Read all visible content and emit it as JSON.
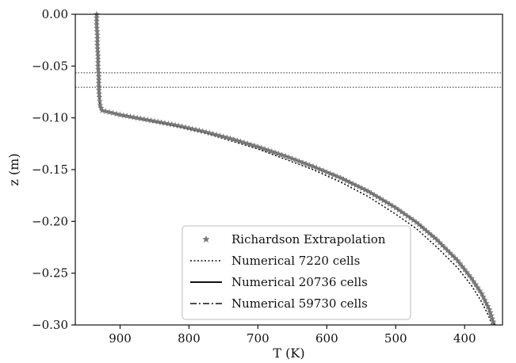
{
  "chart_data": {
    "type": "line",
    "xlabel": "T (K)",
    "ylabel": "z (m)",
    "xlim": [
      965,
      345
    ],
    "ylim": [
      -0.3,
      0.0
    ],
    "x_inverted": true,
    "xticks": [
      900,
      800,
      700,
      600,
      500,
      400
    ],
    "yticks": [
      0.0,
      -0.05,
      -0.1,
      -0.15,
      -0.2,
      -0.25,
      -0.3
    ],
    "xtick_labels": [
      "900",
      "800",
      "700",
      "600",
      "500",
      "400"
    ],
    "ytick_labels": [
      "0.00",
      "−0.05",
      "−0.10",
      "−0.15",
      "−0.20",
      "−0.25",
      "−0.30"
    ],
    "grid": false,
    "legend_position": "lower-center",
    "reference_lines": [
      {
        "z": -0.0565,
        "style": "dotted"
      },
      {
        "z": -0.0705,
        "style": "dotted"
      }
    ],
    "series": [
      {
        "name": "Richardson Extrapolation",
        "style": "star-markers",
        "color": "#777777",
        "points": [
          [
            934,
            0.0
          ],
          [
            934,
            -0.01
          ],
          [
            933,
            -0.02
          ],
          [
            933,
            -0.03
          ],
          [
            932,
            -0.04
          ],
          [
            932,
            -0.05
          ],
          [
            931,
            -0.06
          ],
          [
            931,
            -0.07
          ],
          [
            930,
            -0.08
          ],
          [
            929,
            -0.088
          ],
          [
            926,
            -0.093
          ],
          [
            900,
            -0.097
          ],
          [
            860,
            -0.102
          ],
          [
            820,
            -0.107
          ],
          [
            780,
            -0.113
          ],
          [
            740,
            -0.12
          ],
          [
            700,
            -0.128
          ],
          [
            660,
            -0.137
          ],
          [
            620,
            -0.147
          ],
          [
            580,
            -0.158
          ],
          [
            540,
            -0.171
          ],
          [
            500,
            -0.187
          ],
          [
            470,
            -0.201
          ],
          [
            440,
            -0.218
          ],
          [
            410,
            -0.238
          ],
          [
            390,
            -0.255
          ],
          [
            375,
            -0.27
          ],
          [
            364,
            -0.285
          ],
          [
            357,
            -0.3
          ]
        ]
      },
      {
        "name": "Numerical 7220 cells",
        "style": "dotted",
        "color": "#111111",
        "points": [
          [
            934,
            0.0
          ],
          [
            933,
            -0.02
          ],
          [
            932,
            -0.04
          ],
          [
            931,
            -0.06
          ],
          [
            930,
            -0.08
          ],
          [
            928,
            -0.088
          ],
          [
            924,
            -0.093
          ],
          [
            900,
            -0.098
          ],
          [
            860,
            -0.103
          ],
          [
            820,
            -0.108
          ],
          [
            780,
            -0.114
          ],
          [
            740,
            -0.122
          ],
          [
            700,
            -0.13
          ],
          [
            660,
            -0.14
          ],
          [
            620,
            -0.15
          ],
          [
            580,
            -0.162
          ],
          [
            540,
            -0.176
          ],
          [
            500,
            -0.193
          ],
          [
            470,
            -0.207
          ],
          [
            440,
            -0.225
          ],
          [
            410,
            -0.245
          ],
          [
            390,
            -0.262
          ],
          [
            376,
            -0.277
          ],
          [
            366,
            -0.29
          ],
          [
            360,
            -0.3
          ]
        ]
      },
      {
        "name": "Numerical 20736 cells",
        "style": "solid",
        "color": "#111111",
        "points": [
          [
            934,
            0.0
          ],
          [
            933,
            -0.02
          ],
          [
            932,
            -0.04
          ],
          [
            931,
            -0.06
          ],
          [
            930,
            -0.08
          ],
          [
            929,
            -0.088
          ],
          [
            925,
            -0.093
          ],
          [
            900,
            -0.097
          ],
          [
            860,
            -0.102
          ],
          [
            820,
            -0.107
          ],
          [
            780,
            -0.113
          ],
          [
            740,
            -0.12
          ],
          [
            700,
            -0.128
          ],
          [
            660,
            -0.137
          ],
          [
            620,
            -0.147
          ],
          [
            580,
            -0.158
          ],
          [
            540,
            -0.171
          ],
          [
            500,
            -0.187
          ],
          [
            470,
            -0.201
          ],
          [
            440,
            -0.218
          ],
          [
            410,
            -0.238
          ],
          [
            390,
            -0.255
          ],
          [
            375,
            -0.27
          ],
          [
            364,
            -0.285
          ],
          [
            356,
            -0.3
          ]
        ]
      },
      {
        "name": "Numerical 59730 cells",
        "style": "dashdot",
        "color": "#111111",
        "points": [
          [
            934,
            0.0
          ],
          [
            933,
            -0.02
          ],
          [
            932,
            -0.04
          ],
          [
            931,
            -0.06
          ],
          [
            930,
            -0.08
          ],
          [
            929,
            -0.088
          ],
          [
            925,
            -0.093
          ],
          [
            900,
            -0.097
          ],
          [
            860,
            -0.102
          ],
          [
            820,
            -0.107
          ],
          [
            780,
            -0.113
          ],
          [
            740,
            -0.12
          ],
          [
            700,
            -0.128
          ],
          [
            660,
            -0.137
          ],
          [
            620,
            -0.147
          ],
          [
            580,
            -0.158
          ],
          [
            540,
            -0.171
          ],
          [
            500,
            -0.187
          ],
          [
            470,
            -0.201
          ],
          [
            440,
            -0.218
          ],
          [
            410,
            -0.238
          ],
          [
            390,
            -0.255
          ],
          [
            375,
            -0.27
          ],
          [
            364,
            -0.285
          ],
          [
            357,
            -0.3
          ]
        ]
      }
    ]
  }
}
